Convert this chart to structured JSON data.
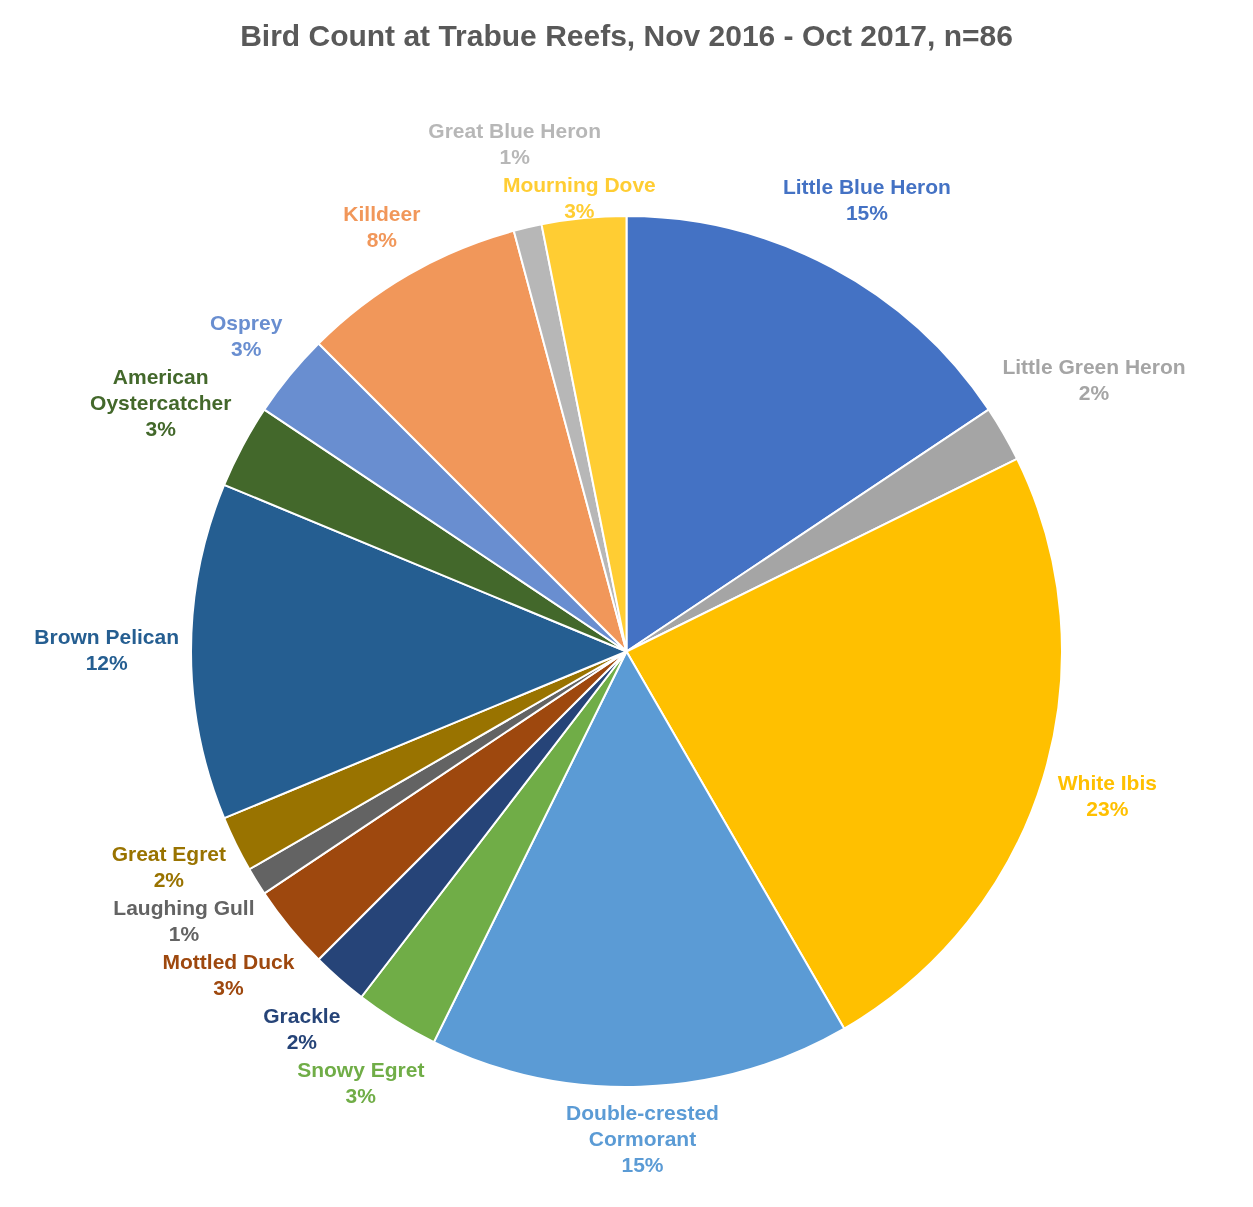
{
  "chart_data": {
    "type": "pie",
    "title": "Bird Count at Trabue Reefs, Nov 2016 - Oct 2017, n=86",
    "categories": [
      "Little Blue Heron",
      "Little Green Heron",
      "White Ibis",
      "Double-crested Cormorant",
      "Snowy Egret",
      "Grackle",
      "Mottled Duck",
      "Laughing Gull",
      "Great Egret",
      "Brown Pelican",
      "American Oystercatcher",
      "Osprey",
      "Killdeer",
      "Great Blue Heron",
      "Mourning Dove"
    ],
    "values": [
      15,
      2,
      23,
      15,
      3,
      2,
      3,
      1,
      2,
      12,
      3,
      3,
      8,
      1,
      3
    ],
    "value_labels": [
      "15%",
      "2%",
      "23%",
      "15%",
      "3%",
      "2%",
      "3%",
      "1%",
      "2%",
      "12%",
      "3%",
      "3%",
      "8%",
      "1%",
      "3%"
    ],
    "colors": [
      "#4472c4",
      "#a5a5a5",
      "#ffc000",
      "#5b9bd5",
      "#70ad47",
      "#264478",
      "#9e480e",
      "#636363",
      "#997300",
      "#255e91",
      "#43682b",
      "#698ed0",
      "#f1975a",
      "#b7b7b7",
      "#ffcd33"
    ],
    "legend": false
  }
}
